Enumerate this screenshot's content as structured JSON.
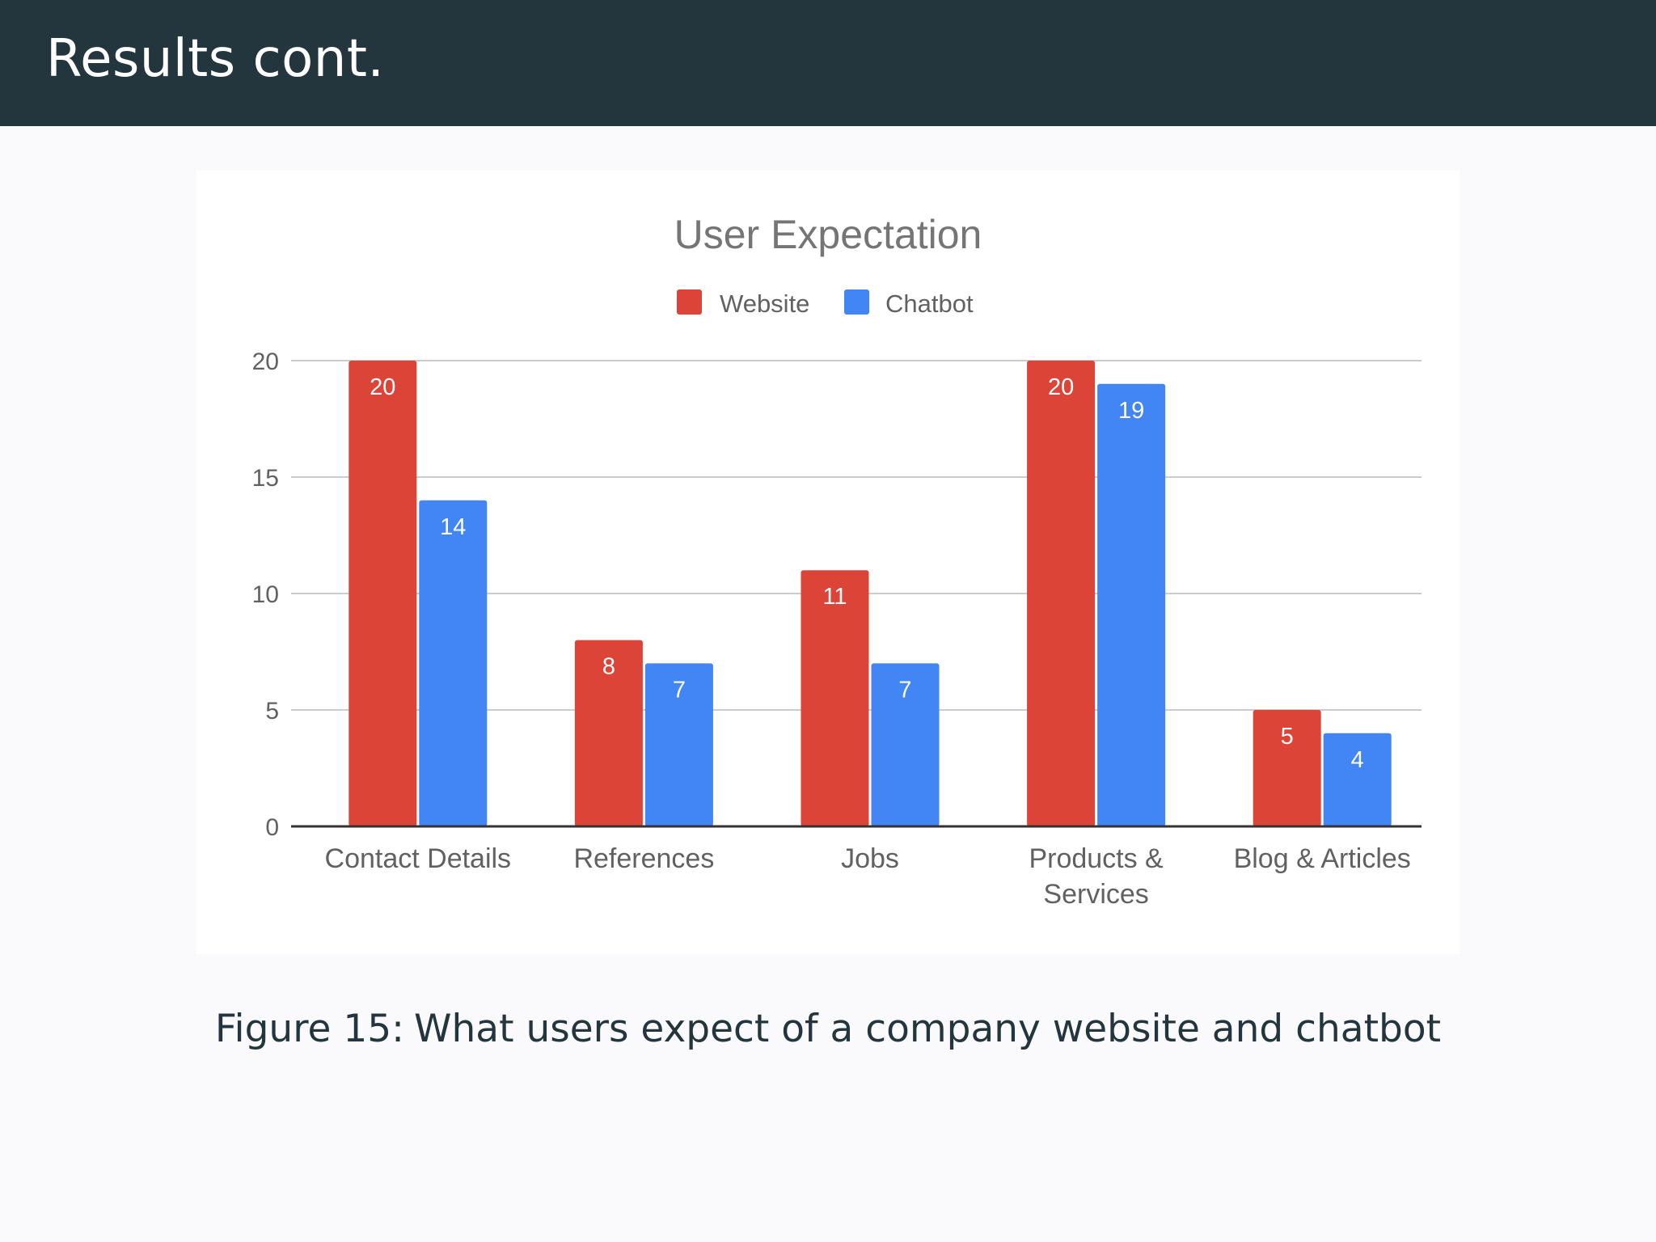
{
  "header": {
    "title": "Results cont."
  },
  "caption": {
    "label": "Figure 15:",
    "text": "What users expect of a company website and chatbot"
  },
  "colors": {
    "header_bg": "#23363e",
    "website": "#db4437",
    "chatbot": "#4285f4"
  },
  "chart_data": {
    "type": "bar",
    "title": "User Expectation",
    "xlabel": "",
    "ylabel": "",
    "categories": [
      "Contact Details",
      "References",
      "Jobs",
      "Products & Services",
      "Blog & Articles"
    ],
    "series": [
      {
        "name": "Website",
        "values": [
          20,
          8,
          11,
          20,
          5
        ],
        "color": "#db4437"
      },
      {
        "name": "Chatbot",
        "values": [
          14,
          7,
          7,
          19,
          4
        ],
        "color": "#4285f4"
      }
    ],
    "ylim": [
      0,
      20
    ],
    "yticks": [
      "0",
      "5",
      "10",
      "15",
      "20"
    ],
    "grid": true,
    "legend": "top-center",
    "data_labels": true
  }
}
